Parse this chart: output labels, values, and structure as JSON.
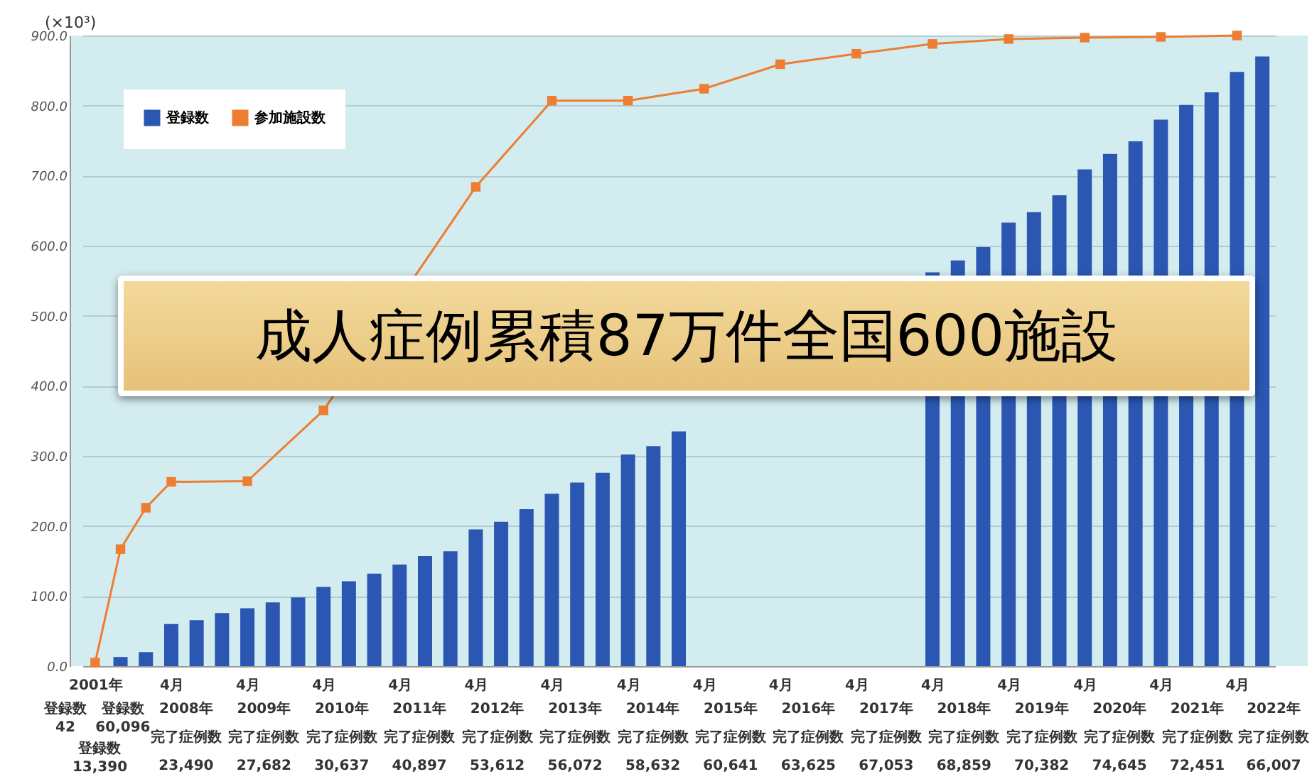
{
  "chart_data": {
    "type": "bar",
    "title": "成人症例累積87万件全国600施設",
    "ylabel": "(×10³)",
    "categories": [
      "2001年",
      null,
      null,
      "4月",
      null,
      null,
      "4月",
      null,
      null,
      "4月",
      null,
      null,
      "4月",
      null,
      null,
      "4月",
      null,
      null,
      "4月",
      null,
      null,
      "4月",
      null,
      null,
      "4月",
      null,
      null,
      "4月",
      null,
      null,
      "4月",
      null,
      null,
      "4月",
      null,
      null,
      "4月",
      null,
      null,
      "4月",
      null,
      null,
      "4月",
      null,
      null,
      "4月",
      null
    ],
    "series": [
      {
        "name": "登録数",
        "color": "#2b57b3",
        "values": [
          0,
          13,
          20,
          60,
          65.5,
          75.7,
          82.5,
          91,
          98,
          113,
          121,
          132,
          145,
          157,
          164,
          195,
          206,
          224,
          246,
          262,
          276,
          302,
          314,
          335,
          null,
          null,
          null,
          null,
          null,
          null,
          null,
          null,
          null,
          562,
          579,
          598,
          633,
          648,
          672,
          709,
          731,
          749,
          780,
          801,
          819,
          848,
          870
        ]
      },
      {
        "name": "参加施設数",
        "type": "line",
        "color": "#ed7d31",
        "values": [
          5,
          167,
          226,
          263,
          null,
          null,
          264,
          null,
          null,
          365,
          null,
          null,
          null,
          null,
          null,
          684,
          null,
          null,
          807,
          null,
          null,
          807,
          null,
          null,
          824,
          null,
          null,
          859,
          null,
          null,
          874,
          null,
          null,
          888,
          null,
          null,
          895,
          null,
          null,
          897,
          null,
          null,
          898,
          null,
          null,
          900,
          null
        ]
      }
    ],
    "ylim": [
      0,
      900
    ],
    "yticks": [
      {
        "value": 0,
        "label": "0.0"
      },
      {
        "value": 100,
        "label": "100.0"
      },
      {
        "value": 200,
        "label": "200.0"
      },
      {
        "value": 300,
        "label": "300.0"
      },
      {
        "value": 400,
        "label": "400.0"
      },
      {
        "value": 500,
        "label": "500.0"
      },
      {
        "value": 600,
        "label": "600.0"
      },
      {
        "value": 700,
        "label": "700.0"
      },
      {
        "value": 800,
        "label": "800.0"
      },
      {
        "value": 900,
        "label": "900.0"
      }
    ],
    "grid": "y",
    "legend": "top left",
    "marker": "square",
    "annotations": [
      "登録数",
      "42",
      "登録数",
      "60,096",
      "登録数",
      "13,390",
      "2008年",
      "完了症例数",
      "23,490",
      "2009年",
      "完了症例数",
      "27,682",
      "2010年",
      "完了症例数",
      "30,637",
      "2011年",
      "完了症例数",
      "40,897",
      "2012年",
      "完了症例数",
      "53,612",
      "2013年",
      "完了症例数",
      "56,072",
      "2014年",
      "完了症例数",
      "58,632",
      "2015年",
      "完了症例数",
      "60,641",
      "2016年",
      "完了症例数",
      "63,625",
      "2017年",
      "完了症例数",
      "67,053",
      "2018年",
      "完了症例数",
      "68,859",
      "2019年",
      "完了症例数",
      "70,382",
      "2020年",
      "完了症例数",
      "74,645",
      "2021年",
      "完了症例数",
      "72,451",
      "2022年",
      "完了症例数",
      "66,007"
    ]
  }
}
